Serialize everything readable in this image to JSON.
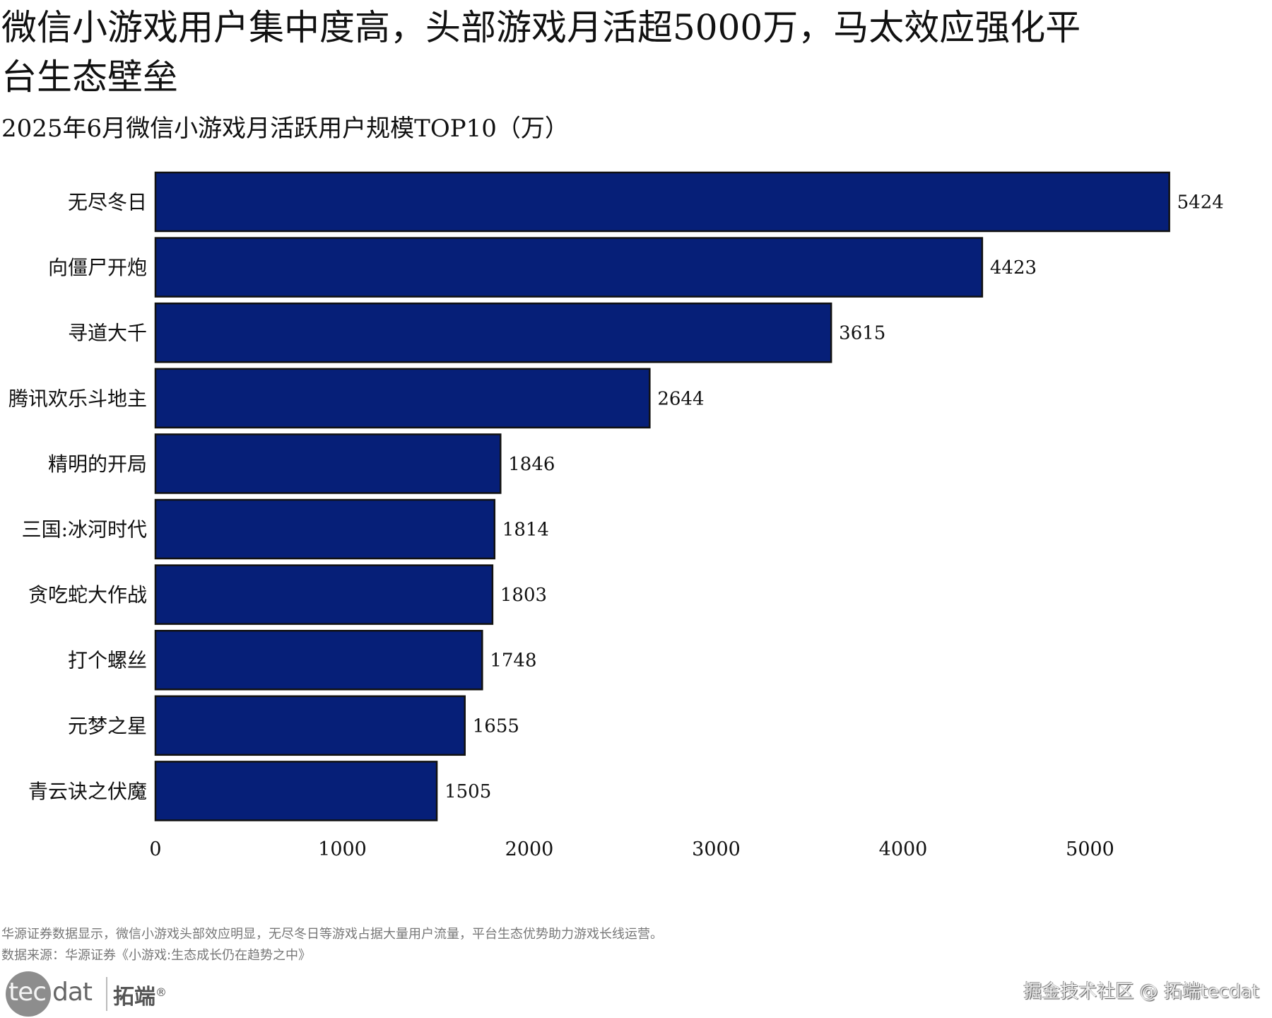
{
  "header": {
    "title": "微信小游戏用户集中度高，头部游戏月活超5000万，马太效应强化平台生态壁垒",
    "subtitle": "2025年6月微信小游戏月活跃用户规模TOP10（万）"
  },
  "chart_data": {
    "type": "bar",
    "orientation": "horizontal",
    "title": "2025年6月微信小游戏月活跃用户规模TOP10（万）",
    "xlabel": "",
    "ylabel": "",
    "categories": [
      "无尽冬日",
      "向僵尸开炮",
      "寻道大千",
      "腾讯欢乐斗地主",
      "精明的开局",
      "三国:冰河时代",
      "贪吃蛇大作战",
      "打个螺丝",
      "元梦之星",
      "青云诀之伏魔"
    ],
    "values": [
      5424,
      4423,
      3615,
      2644,
      1846,
      1814,
      1803,
      1748,
      1655,
      1505
    ],
    "data_labels": [
      "5424",
      "4423",
      "3615",
      "2644",
      "1846",
      "1814",
      "1803",
      "1748",
      "1655",
      "1505"
    ],
    "xlim": [
      0,
      5700
    ],
    "xticks": [
      0,
      1000,
      2000,
      3000,
      4000,
      5000
    ],
    "xtick_labels": [
      "0",
      "1000",
      "2000",
      "3000",
      "4000",
      "5000"
    ],
    "grid": false,
    "legend": "none",
    "bar_color": "#061F78",
    "bar_edge_color": "#111111"
  },
  "footer": {
    "note": "华源证券数据显示，微信小游戏头部效应明显，无尽冬日等游戏占据大量用户流量，平台生态优势助力游戏长线运营。",
    "source": "数据来源：华源证券《小游戏:生态成长仍在趋势之中》"
  },
  "branding": {
    "logo_tec": "tec",
    "logo_dat": "dat",
    "logo_cn": "拓端",
    "logo_reg": "®",
    "watermark": "掘金技术社区 @ 拓端tecdat"
  }
}
